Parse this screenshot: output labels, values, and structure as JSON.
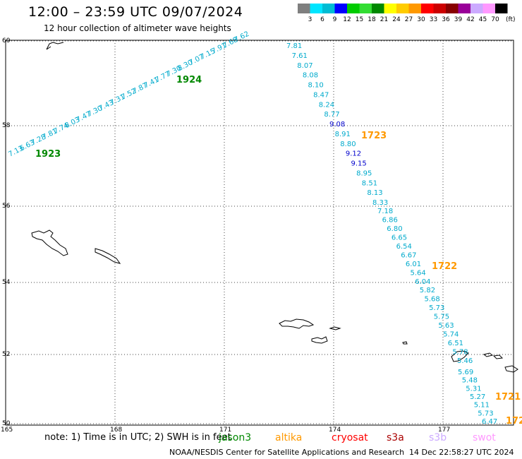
{
  "header": {
    "title": "12:00 – 23:59 UTC 09/07/2024",
    "subtitle": "12 hour collection of altimeter wave heights"
  },
  "colorbar": {
    "unit": "(ft)",
    "segments": [
      {
        "color": "#7f7f7f",
        "label": "3"
      },
      {
        "color": "#00e5ff",
        "label": "6"
      },
      {
        "color": "#00bcd4",
        "label": "9"
      },
      {
        "color": "#0000ff",
        "label": "12"
      },
      {
        "color": "#00cc00",
        "label": "15"
      },
      {
        "color": "#33dd33",
        "label": "18"
      },
      {
        "color": "#008800",
        "label": "21"
      },
      {
        "color": "#ffff00",
        "label": "24"
      },
      {
        "color": "#ffcc00",
        "label": "27"
      },
      {
        "color": "#ff9900",
        "label": "30"
      },
      {
        "color": "#ff0000",
        "label": "33"
      },
      {
        "color": "#cc0000",
        "label": "36"
      },
      {
        "color": "#880000",
        "label": "39"
      },
      {
        "color": "#990099",
        "label": "42"
      },
      {
        "color": "#ccaaff",
        "label": "45"
      },
      {
        "color": "#ff99ff",
        "label": "70"
      },
      {
        "color": "#000000",
        "label": ""
      }
    ]
  },
  "axes": {
    "lat_labels": [
      "60",
      "58",
      "56",
      "54",
      "52",
      "50"
    ],
    "lon_labels": [
      "165",
      "168",
      "171",
      "174",
      "177"
    ]
  },
  "tracks": [
    {
      "id": "track-1923",
      "color": "#00aacc",
      "time_label": "1923",
      "time_color": "#008800",
      "values": [
        "7.13",
        "6.63",
        "7.28",
        "7.81",
        "7.74",
        "8.03",
        "7.47",
        "7.30",
        "7.43",
        "7.31",
        "7.52",
        "7.87",
        "7.41",
        "7.77",
        "7.30",
        "8.30",
        "7.07",
        "7.15",
        "7.91",
        "7.68",
        "7.62"
      ]
    },
    {
      "id": "track-1924",
      "color": "#00aacc",
      "time_label": "1924",
      "time_color": "#008800",
      "values": []
    },
    {
      "id": "track-1723",
      "color": "#00aacc",
      "time_label": "1723",
      "time_color": "#ff9900",
      "values": [
        "7.81",
        "7.61",
        "8.07",
        "8.08",
        "8.10",
        "8.47",
        "8.24",
        "8.77",
        "9.08",
        "8.91",
        "8.80",
        "9.12",
        "9.15",
        "8.95",
        "8.51",
        "8.13",
        "8.33"
      ]
    },
    {
      "id": "track-1722",
      "color": "#00aacc",
      "time_label": "1722",
      "time_color": "#ff9900",
      "values": [
        "7.18",
        "6.86",
        "6.80",
        "6.65",
        "6.54",
        "6.67",
        "6.01",
        "5.64",
        "6.04",
        "5.82",
        "5.68",
        "5.73",
        "5.75",
        "5.63",
        "5.74",
        "6.51",
        "5.78",
        "5.46"
      ]
    },
    {
      "id": "track-1721",
      "color": "#00aacc",
      "time_label": "1721",
      "time_color": "#ff9900",
      "values": [
        "5.69",
        "5.48",
        "5.31",
        "5.27",
        "5.11",
        "5.73",
        "6.47"
      ]
    },
    {
      "id": "track-172x",
      "color": "#00aacc",
      "time_label": "172",
      "time_color": "#ff9900",
      "values": []
    }
  ],
  "footer": {
    "note": "note:  1) Time is in UTC; 2) SWH is in feet",
    "satellites": [
      {
        "name": "jason3",
        "color": "#008800"
      },
      {
        "name": "altika",
        "color": "#ff9900"
      },
      {
        "name": "cryosat",
        "color": "#ff0000"
      },
      {
        "name": "s3a",
        "color": "#aa0000"
      },
      {
        "name": "s3b",
        "color": "#ccaaff"
      },
      {
        "name": "swot",
        "color": "#ff99ff"
      }
    ],
    "credit": "NOAA/NESDIS Center for Satellite Applications and Research",
    "timestamp": "14 Dec 22:58:27 UTC 2024"
  }
}
